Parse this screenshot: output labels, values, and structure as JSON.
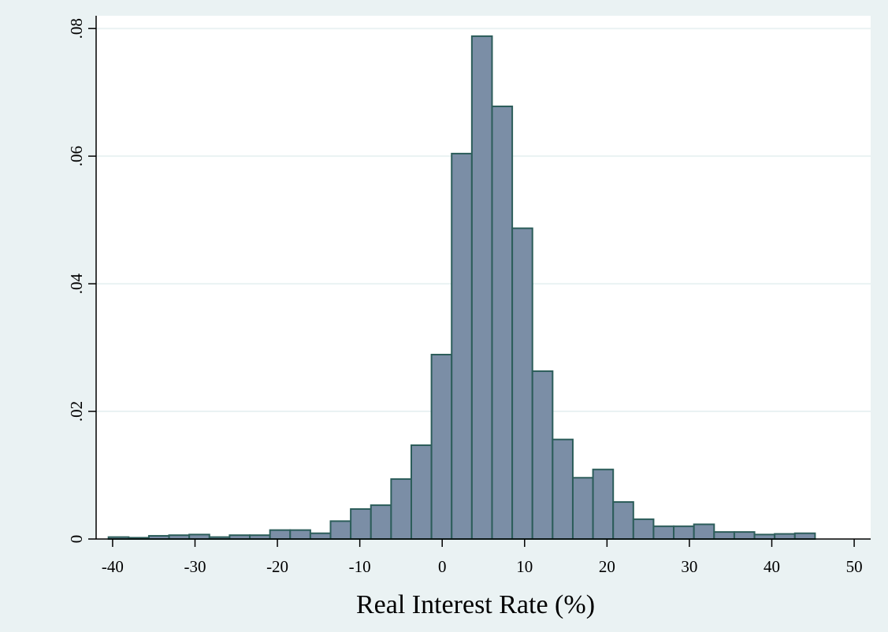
{
  "chart_data": {
    "type": "bar",
    "subtype": "histogram",
    "title": "",
    "xlabel": "Real Interest Rate (%)",
    "ylabel": "",
    "xlim": [
      -42,
      52
    ],
    "ylim": [
      0,
      0.082
    ],
    "bin_width": 2.45,
    "x_ticks": [
      -40,
      -30,
      -20,
      -10,
      0,
      10,
      20,
      30,
      40,
      50
    ],
    "x_tick_labels": [
      "-40",
      "-30",
      "-20",
      "-10",
      "0",
      "10",
      "20",
      "30",
      "40",
      "50"
    ],
    "y_ticks": [
      0,
      0.02,
      0.04,
      0.06,
      0.08
    ],
    "y_tick_labels": [
      "0",
      ".02",
      ".04",
      ".06",
      ".08"
    ],
    "grid": "horizontal",
    "legend": "none",
    "bins": [
      {
        "x0": -40.5,
        "x1": -38.05,
        "value": 0.0003
      },
      {
        "x0": -38.05,
        "x1": -35.6,
        "value": 0.0002
      },
      {
        "x0": -35.6,
        "x1": -33.15,
        "value": 0.0005
      },
      {
        "x0": -33.15,
        "x1": -30.7,
        "value": 0.0006
      },
      {
        "x0": -30.7,
        "x1": -28.25,
        "value": 0.0007
      },
      {
        "x0": -28.25,
        "x1": -25.8,
        "value": 0.0003
      },
      {
        "x0": -25.8,
        "x1": -23.35,
        "value": 0.0006
      },
      {
        "x0": -23.35,
        "x1": -20.9,
        "value": 0.0006
      },
      {
        "x0": -20.9,
        "x1": -18.45,
        "value": 0.0014
      },
      {
        "x0": -18.45,
        "x1": -16.0,
        "value": 0.0014
      },
      {
        "x0": -16.0,
        "x1": -13.55,
        "value": 0.0009
      },
      {
        "x0": -13.55,
        "x1": -11.1,
        "value": 0.0028
      },
      {
        "x0": -11.1,
        "x1": -8.65,
        "value": 0.0047
      },
      {
        "x0": -8.65,
        "x1": -6.2,
        "value": 0.0053
      },
      {
        "x0": -6.2,
        "x1": -3.75,
        "value": 0.0094
      },
      {
        "x0": -3.75,
        "x1": -1.3,
        "value": 0.0147
      },
      {
        "x0": -1.3,
        "x1": 1.15,
        "value": 0.0289
      },
      {
        "x0": 1.15,
        "x1": 3.6,
        "value": 0.0604
      },
      {
        "x0": 3.6,
        "x1": 6.05,
        "value": 0.0788
      },
      {
        "x0": 6.05,
        "x1": 8.5,
        "value": 0.0678
      },
      {
        "x0": 8.5,
        "x1": 10.95,
        "value": 0.0487
      },
      {
        "x0": 10.95,
        "x1": 13.4,
        "value": 0.0263
      },
      {
        "x0": 13.4,
        "x1": 15.85,
        "value": 0.0156
      },
      {
        "x0": 15.85,
        "x1": 18.3,
        "value": 0.0096
      },
      {
        "x0": 18.3,
        "x1": 20.75,
        "value": 0.0109
      },
      {
        "x0": 20.75,
        "x1": 23.2,
        "value": 0.0058
      },
      {
        "x0": 23.2,
        "x1": 25.65,
        "value": 0.0031
      },
      {
        "x0": 25.65,
        "x1": 28.1,
        "value": 0.002
      },
      {
        "x0": 28.1,
        "x1": 30.55,
        "value": 0.002
      },
      {
        "x0": 30.55,
        "x1": 33.0,
        "value": 0.0023
      },
      {
        "x0": 33.0,
        "x1": 35.45,
        "value": 0.0011
      },
      {
        "x0": 35.45,
        "x1": 37.9,
        "value": 0.0011
      },
      {
        "x0": 37.9,
        "x1": 40.35,
        "value": 0.0007
      },
      {
        "x0": 40.35,
        "x1": 42.8,
        "value": 0.0008
      },
      {
        "x0": 42.8,
        "x1": 45.25,
        "value": 0.0009
      }
    ],
    "colors": {
      "background": "#eaf2f3",
      "plot_background": "#ffffff",
      "bar_fill": "#7b8ea6",
      "bar_stroke": "#2c5d5a",
      "grid": "#eaf2f3",
      "axis": "#000000"
    }
  }
}
